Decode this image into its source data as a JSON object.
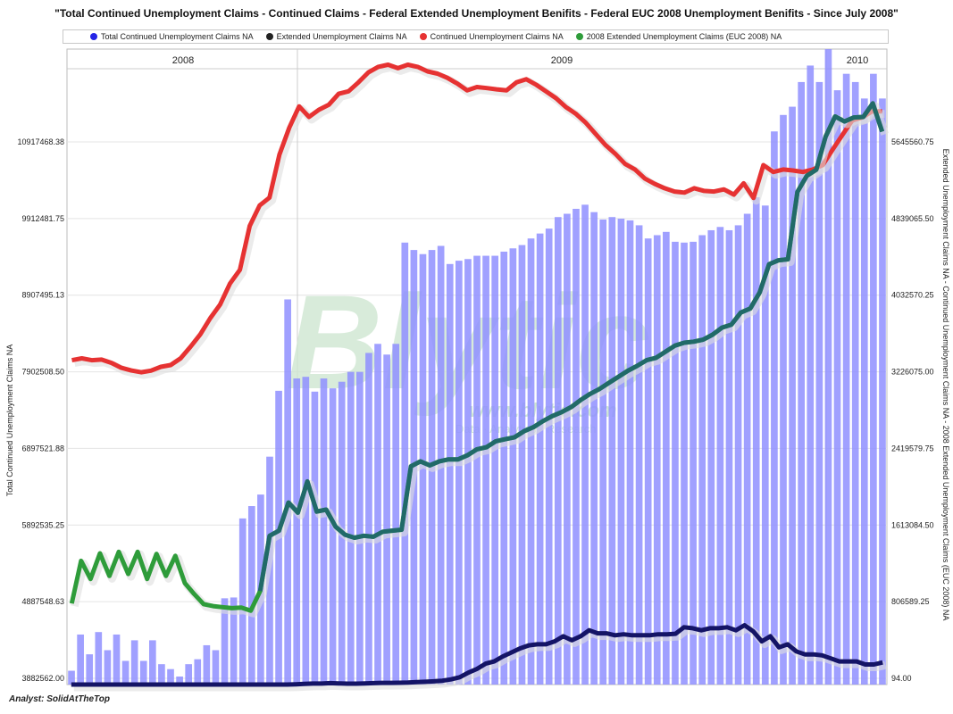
{
  "chart_data": {
    "type": "bar+line",
    "title": "\"Total Continued Unemployment Claims - Continued Claims - Federal Extended Unemployment Benifits - Federal EUC 2008 Unemployment Benifits - Since July 2008\"",
    "analyst": "Analyst: SolidAtTheTop",
    "year_labels": [
      "2008",
      "2009",
      "2010"
    ],
    "left_axis": {
      "label": "Total Continued Unemployment Claims NA",
      "ticks": [
        "3882562.00",
        "4887548.63",
        "5892535.25",
        "6897521.88",
        "7902508.50",
        "8907495.13",
        "9912481.75",
        "10917468.38"
      ],
      "ylim": [
        3882562,
        11600000
      ]
    },
    "right_axis": {
      "label": "Extended Unemployment Claims NA - Continued Unemployment Claims NA - 2008 Extended Unemployment Claims (EUC 2008) NA",
      "ticks": [
        "94.00",
        "806589.25",
        "1613084.50",
        "2419579.75",
        "3226075.00",
        "4032570.25",
        "4839065.50",
        "5645560.75"
      ],
      "ylim": [
        94,
        6320000
      ]
    },
    "legend": [
      "Total Continued Unemployment Claims NA",
      "Extended Unemployment Claims NA",
      "Continued Unemployment Claims NA",
      "2008 Extended Unemployment Claims (EUC 2008) NA"
    ],
    "colors": {
      "bars": "#8f8fff",
      "total_dot": "#2424e6",
      "extended": "#141466",
      "continued": "#e63232",
      "euc": "#2e9c3a",
      "euc_overlap": "#1e5a78",
      "watermark": "#cfe7d2"
    },
    "watermark": "Blytic",
    "watermark_url": "www.blytic.com",
    "watermark_tag": "Data · Analytics · Research",
    "series": [
      {
        "name": "Total Continued Unemployment Claims NA",
        "kind": "bar",
        "axis": "left",
        "values": [
          4050000,
          4490000,
          4250000,
          4520000,
          4300000,
          4490000,
          4170000,
          4420000,
          4170000,
          4420000,
          4130000,
          4070000,
          3980000,
          4130000,
          4190000,
          4360000,
          4300000,
          4930000,
          4940000,
          5900000,
          6050000,
          6190000,
          6650000,
          7450000,
          8560000,
          7600000,
          7620000,
          7440000,
          7600000,
          7480000,
          7560000,
          7680000,
          7680000,
          7910000,
          8020000,
          7890000,
          8020000,
          9250000,
          9160000,
          9110000,
          9160000,
          9210000,
          8990000,
          9030000,
          9050000,
          9090000,
          9090000,
          9090000,
          9140000,
          9180000,
          9220000,
          9300000,
          9360000,
          9420000,
          9560000,
          9600000,
          9660000,
          9710000,
          9620000,
          9530000,
          9560000,
          9540000,
          9520000,
          9460000,
          9300000,
          9340000,
          9380000,
          9260000,
          9250000,
          9260000,
          9340000,
          9400000,
          9440000,
          9400000,
          9460000,
          9600000,
          9800000,
          9700000,
          10600000,
          10800000,
          10900000,
          11200000,
          11400000,
          11200000,
          11600000,
          11100000,
          11300000,
          11200000,
          11000000,
          11300000,
          11000000
        ]
      },
      {
        "name": "Continued Unemployment Claims NA",
        "kind": "line",
        "axis": "right",
        "values": [
          3226075,
          3244000,
          3226075,
          3232000,
          3199000,
          3150000,
          3124000,
          3106000,
          3122000,
          3160000,
          3178000,
          3244000,
          3360000,
          3483000,
          3644000,
          3779000,
          3988000,
          4125000,
          4562000,
          4765000,
          4843000,
          5269000,
          5539000,
          5750000,
          5645560,
          5716000,
          5766000,
          5875000,
          5900000,
          5989000,
          6087000,
          6143000,
          6165000,
          6130000,
          6165000,
          6143000,
          6098000,
          6076000,
          6034000,
          5977000,
          5910000,
          5943000,
          5932000,
          5920000,
          5910000,
          5989000,
          6020000,
          5965000,
          5899000,
          5832000,
          5744000,
          5677000,
          5589000,
          5478000,
          5367000,
          5280000,
          5178000,
          5123000,
          5032000,
          4979000,
          4936000,
          4903000,
          4893000,
          4936000,
          4910000,
          4903000,
          4925000,
          4872000,
          4985000,
          4839065,
          5166000,
          5098000,
          5123000,
          5113000,
          5098000,
          5123000,
          5166000,
          5320000,
          5467000,
          5612000,
          5640000,
          5700000,
          5700000
        ],
        "x_offset": 0
      },
      {
        "name": "2008 Extended Unemployment Claims (EUC 2008) NA",
        "kind": "line",
        "axis": "right",
        "values": [
          806589,
          1230000,
          1050000,
          1305000,
          1080000,
          1320000,
          1100000,
          1320000,
          1050000,
          1300000,
          1080000,
          1280000,
          1010000,
          900000,
          800000,
          780000,
          770000,
          760000,
          765000,
          735000,
          930000,
          1480000,
          1530000,
          1810000,
          1710000,
          2020000,
          1720000,
          1740000,
          1570000,
          1490000,
          1460000,
          1480000,
          1470000,
          1520000,
          1530000,
          1540000,
          2170000,
          2220000,
          2180000,
          2220000,
          2240000,
          2240000,
          2280000,
          2340000,
          2360000,
          2419579,
          2440000,
          2460000,
          2520000,
          2560000,
          2620000,
          2670000,
          2710000,
          2760000,
          2830000,
          2890000,
          2940000,
          3000000,
          3060000,
          3120000,
          3170000,
          3226075,
          3250000,
          3310000,
          3370000,
          3400000,
          3410000,
          3430000,
          3480000,
          3550000,
          3580000,
          3700000,
          3740000,
          3900000,
          4180000,
          4220000,
          4230000,
          4900000,
          5060000,
          5120000,
          5450000,
          5650000,
          5600000,
          5640000,
          5645560,
          5780000,
          5500000
        ]
      },
      {
        "name": "Extended Unemployment Claims NA",
        "kind": "line",
        "axis": "right",
        "values": [
          94,
          94,
          94,
          94,
          94,
          94,
          94,
          94,
          94,
          94,
          94,
          94,
          94,
          94,
          94,
          94,
          94,
          94,
          94,
          94,
          94,
          94,
          94,
          94,
          94,
          94,
          3000,
          6000,
          10000,
          10000,
          14000,
          12000,
          9000,
          9000,
          12000,
          14000,
          17000,
          17000,
          18000,
          20000,
          25000,
          28000,
          32000,
          38000,
          52000,
          73000,
          118000,
          155000,
          208000,
          230000,
          280000,
          320000,
          360000,
          390000,
          400000,
          400000,
          430000,
          480000,
          440000,
          480000,
          540000,
          510000,
          510000,
          490000,
          500000,
          490000,
          490000,
          490000,
          500000,
          500000,
          505000,
          570000,
          560000,
          540000,
          560000,
          560000,
          570000,
          540000,
          590000,
          530000,
          430000,
          480000,
          370000,
          400000,
          330000,
          300000,
          300000,
          290000,
          260000,
          230000,
          230000,
          230000,
          200000,
          200000,
          220000
        ]
      }
    ]
  }
}
